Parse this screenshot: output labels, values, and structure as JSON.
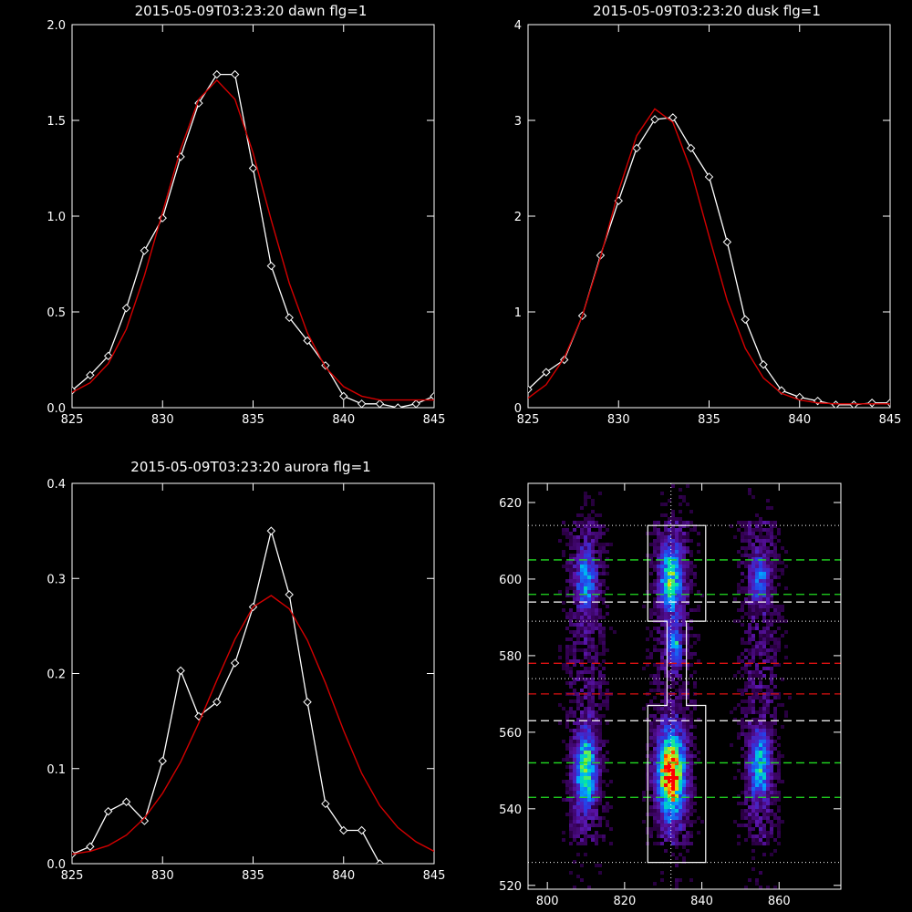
{
  "chart_data": [
    {
      "type": "line",
      "title": "2015-05-09T03:23:20 dawn flg=1",
      "xlabel": "",
      "ylabel": "",
      "xlim": [
        825,
        845
      ],
      "ylim": [
        0,
        2.0
      ],
      "xticks": [
        "825",
        "830",
        "835",
        "840",
        "845"
      ],
      "yticks": [
        "0.0",
        "0.5",
        "1.0",
        "1.5",
        "2.0"
      ],
      "grid": false,
      "series": [
        {
          "x": [
            825,
            826,
            827,
            828,
            829,
            830,
            831,
            832,
            833,
            834,
            835,
            836,
            837,
            838,
            839,
            840,
            841,
            842,
            843,
            844,
            845
          ],
          "values": [
            0.09,
            0.17,
            0.27,
            0.52,
            0.82,
            0.99,
            1.31,
            1.59,
            1.74,
            1.74,
            1.25,
            0.74,
            0.47,
            0.35,
            0.22,
            0.06,
            0.02,
            0.02,
            0.0,
            0.02,
            0.06
          ],
          "color": "#ffffff",
          "marker": "diamond"
        },
        {
          "values": [
            0.08,
            0.13,
            0.23,
            0.41,
            0.69,
            1.02,
            1.35,
            1.61,
            1.71,
            1.61,
            1.33,
            0.98,
            0.65,
            0.39,
            0.21,
            0.11,
            0.06,
            0.04,
            0.04,
            0.04,
            0.04
          ],
          "color": "#d40000",
          "marker": "none"
        }
      ]
    },
    {
      "type": "line",
      "title": "2015-05-09T03:23:20 dusk flg=1",
      "xlabel": "",
      "ylabel": "",
      "xlim": [
        825,
        845
      ],
      "ylim": [
        0,
        4
      ],
      "xticks": [
        "825",
        "830",
        "835",
        "840",
        "845"
      ],
      "yticks": [
        "0",
        "1",
        "2",
        "3",
        "4"
      ],
      "grid": false,
      "series": [
        {
          "x": [
            825,
            826,
            827,
            828,
            829,
            830,
            831,
            832,
            833,
            834,
            835,
            836,
            837,
            838,
            839,
            840,
            841,
            842,
            843,
            844,
            845
          ],
          "values": [
            0.19,
            0.37,
            0.5,
            0.96,
            1.59,
            2.16,
            2.71,
            3.01,
            3.03,
            2.71,
            2.41,
            1.73,
            0.92,
            0.45,
            0.18,
            0.11,
            0.07,
            0.03,
            0.03,
            0.05,
            0.05
          ],
          "color": "#ffffff",
          "marker": "diamond"
        },
        {
          "values": [
            0.1,
            0.24,
            0.52,
            0.96,
            1.57,
            2.26,
            2.84,
            3.12,
            2.98,
            2.48,
            1.79,
            1.12,
            0.62,
            0.31,
            0.15,
            0.08,
            0.05,
            0.04,
            0.04,
            0.04,
            0.04
          ],
          "color": "#d40000",
          "marker": "none"
        }
      ]
    },
    {
      "type": "line",
      "title": "2015-05-09T03:23:20 aurora flg=1",
      "xlabel": "",
      "ylabel": "",
      "xlim": [
        825,
        845
      ],
      "ylim": [
        0,
        0.4
      ],
      "xticks": [
        "825",
        "830",
        "835",
        "840",
        "845"
      ],
      "yticks": [
        "0.0",
        "0.1",
        "0.2",
        "0.3",
        "0.4"
      ],
      "grid": false,
      "series": [
        {
          "x": [
            825,
            826,
            827,
            828,
            829,
            830,
            831,
            832,
            833,
            834,
            835,
            836,
            837,
            838,
            839,
            840,
            841,
            842,
            843,
            844,
            845
          ],
          "values": [
            0.01,
            0.018,
            0.055,
            0.065,
            0.045,
            0.108,
            0.203,
            0.155,
            0.17,
            0.211,
            0.27,
            0.35,
            0.283,
            0.17,
            0.063,
            0.035,
            0.035,
            0.0,
            -0.005,
            -0.005,
            -0.005
          ],
          "color": "#ffffff",
          "marker": "diamond"
        },
        {
          "values": [
            0.01,
            0.013,
            0.019,
            0.03,
            0.048,
            0.074,
            0.107,
            0.148,
            0.193,
            0.236,
            0.27,
            0.282,
            0.268,
            0.235,
            0.19,
            0.14,
            0.095,
            0.061,
            0.038,
            0.023,
            0.013
          ],
          "color": "#d40000",
          "marker": "none"
        }
      ]
    },
    {
      "type": "heatmap",
      "title": "",
      "xlabel": "",
      "ylabel": "",
      "xlim": [
        795,
        876
      ],
      "ylim": [
        519,
        625
      ],
      "xticks": [
        "800",
        "820",
        "840",
        "860"
      ],
      "yticks": [
        "520",
        "540",
        "560",
        "580",
        "600",
        "620"
      ],
      "blobs": [
        {
          "x": 810,
          "y": 550,
          "peak": 0.62,
          "sx": 1.8,
          "sy": 6.5
        },
        {
          "x": 810,
          "y": 600,
          "peak": 0.42,
          "sx": 1.8,
          "sy": 5
        },
        {
          "x": 832,
          "y": 549,
          "peak": 1.0,
          "sx": 2.3,
          "sy": 7
        },
        {
          "x": 832,
          "y": 600,
          "peak": 0.62,
          "sx": 2.0,
          "sy": 5.5
        },
        {
          "x": 833,
          "y": 583,
          "peak": 0.42,
          "sx": 1.2,
          "sy": 3.5
        },
        {
          "x": 855,
          "y": 551,
          "peak": 0.47,
          "sx": 1.8,
          "sy": 6
        },
        {
          "x": 855,
          "y": 600,
          "peak": 0.3,
          "sx": 1.8,
          "sy": 4.5
        }
      ],
      "hlines_green": [
        605,
        596,
        552,
        543
      ],
      "hlines_white_dashed": [
        594,
        563
      ],
      "hlines_red_dashed": [
        578,
        570
      ],
      "hlines_white_dotted": [
        614,
        589,
        574,
        526
      ],
      "vline_dotted": 832,
      "outline": [
        [
          826,
          614
        ],
        [
          841,
          614
        ],
        [
          841,
          589
        ],
        [
          836,
          589
        ],
        [
          836,
          567
        ],
        [
          841,
          567
        ],
        [
          841,
          526
        ],
        [
          826,
          526
        ],
        [
          826,
          567
        ],
        [
          831,
          567
        ],
        [
          831,
          589
        ],
        [
          826,
          589
        ]
      ]
    }
  ]
}
